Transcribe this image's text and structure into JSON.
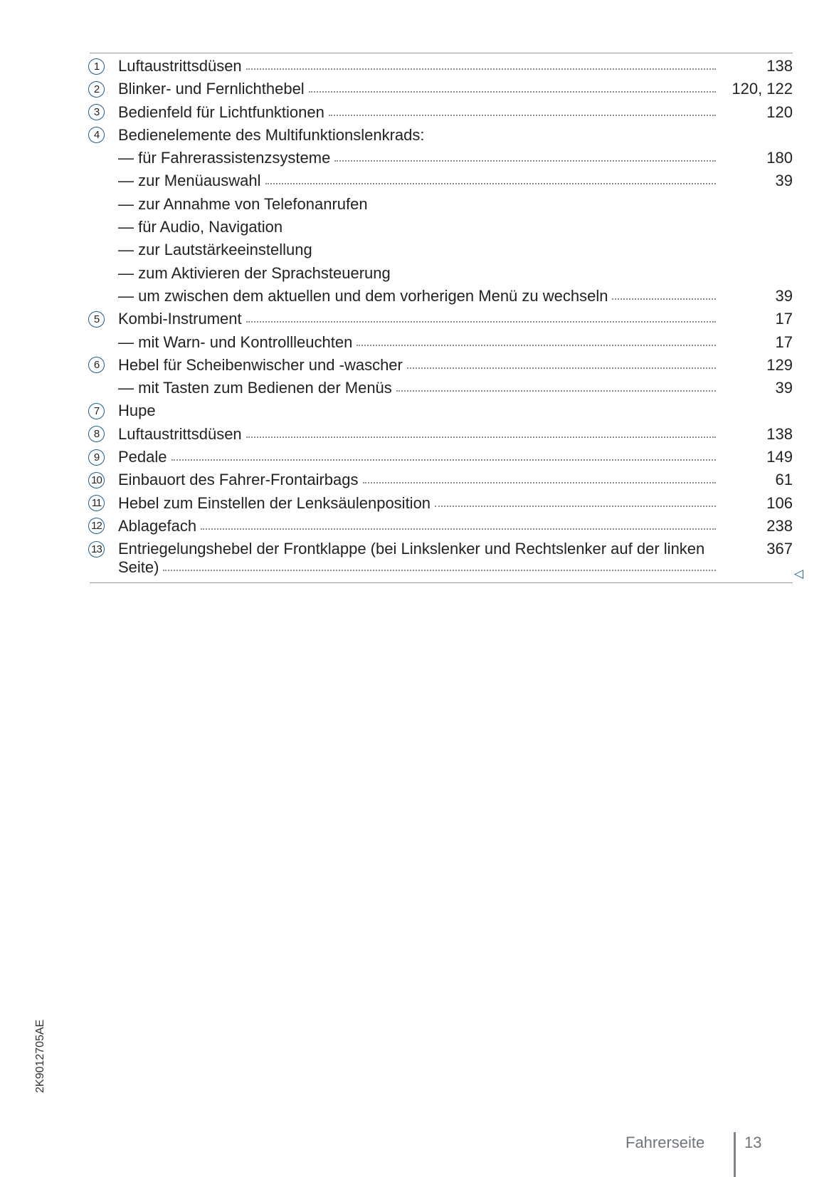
{
  "items": [
    {
      "marker": "1",
      "label": "Luftaustrittsdüsen",
      "page": "138"
    },
    {
      "marker": "2",
      "label": "Blinker- und Fernlichthebel",
      "page": "120, 122"
    },
    {
      "marker": "3",
      "label": "Bedienfeld für Lichtfunktionen",
      "page": "120"
    },
    {
      "marker": "4",
      "label": "Bedienelemente des Multifunktionslenkrads:",
      "page": ""
    },
    {
      "marker": "",
      "label": "— für Fahrerassistenzsysteme",
      "page": "180"
    },
    {
      "marker": "",
      "label": "— zur Menüauswahl",
      "page": "39"
    },
    {
      "marker": "",
      "label": "— zur Annahme von Telefonanrufen",
      "page": ""
    },
    {
      "marker": "",
      "label": "— für Audio, Navigation",
      "page": ""
    },
    {
      "marker": "",
      "label": "— zur Lautstärkeeinstellung",
      "page": ""
    },
    {
      "marker": "",
      "label": "— zum Aktivieren der Sprachsteuerung",
      "page": ""
    },
    {
      "marker": "",
      "label": "— um zwischen dem aktuellen und dem vorherigen Menü zu wechseln",
      "page": "39"
    },
    {
      "marker": "5",
      "label": "Kombi-Instrument",
      "page": "17"
    },
    {
      "marker": "",
      "label": "— mit Warn- und Kontrollleuchten",
      "page": "17"
    },
    {
      "marker": "6",
      "label": "Hebel für Scheibenwischer und -wascher",
      "page": "129"
    },
    {
      "marker": "",
      "label": "— mit Tasten zum Bedienen der Menüs",
      "page": "39"
    },
    {
      "marker": "7",
      "label": "Hupe",
      "page": ""
    },
    {
      "marker": "8",
      "label": "Luftaustrittsdüsen",
      "page": "138"
    },
    {
      "marker": "9",
      "label": "Pedale",
      "page": "149"
    },
    {
      "marker": "10",
      "label": "Einbauort des Fahrer-Frontairbags",
      "page": "61"
    },
    {
      "marker": "11",
      "label": "Hebel zum Einstellen der Lenksäulenposition",
      "page": "106"
    },
    {
      "marker": "12",
      "label": "Ablagefach",
      "page": "238"
    },
    {
      "marker": "13",
      "label": "Entriegelungshebel der Frontklappe (bei Linkslenker und Rechtslenker auf der linken Seite)",
      "page": "367"
    }
  ],
  "end_marker_icon": "triangle-left-icon",
  "accent_color": "#1f5d8c",
  "side_code": "2K9012705AE",
  "footer": {
    "section": "Fahrerseite",
    "page_number": "13"
  }
}
